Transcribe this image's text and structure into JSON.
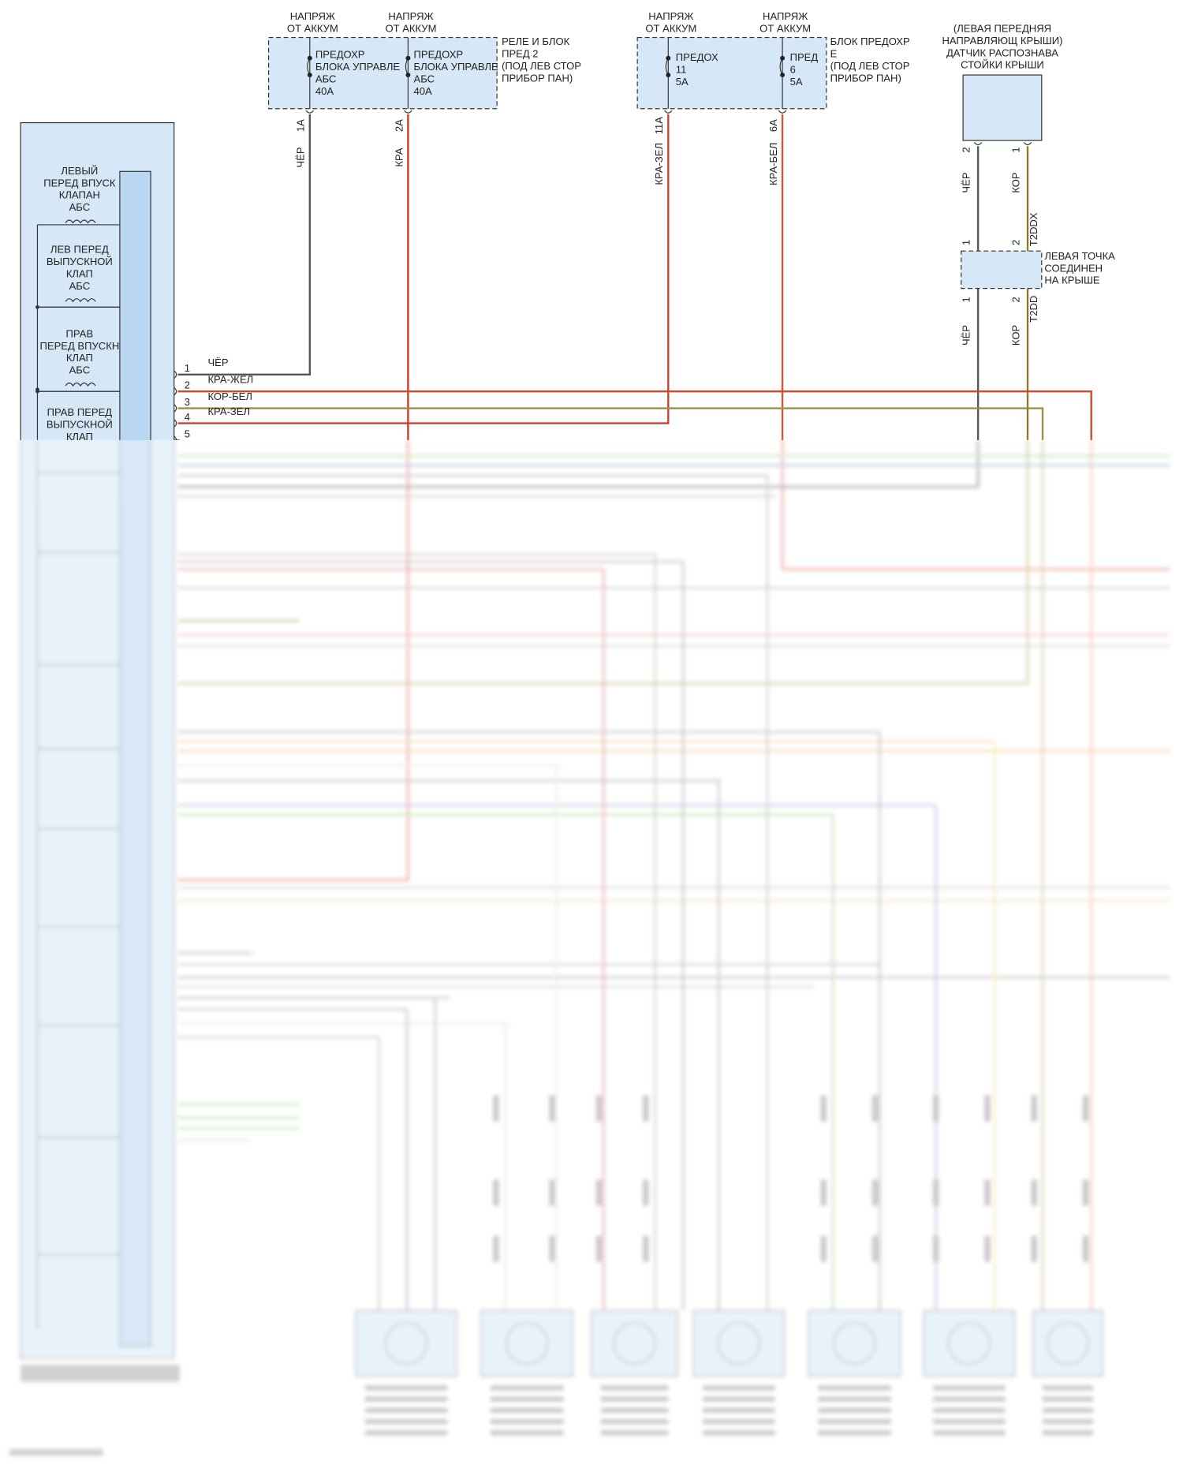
{
  "relay_box": {
    "label": [
      "РЕЛЕ И БЛОК",
      "ПРЕД 2",
      "(ПОД ЛЕВ СТОР",
      "ПРИБОР ПАН)"
    ],
    "fuses": [
      {
        "supply": [
          "НАПРЯЖ",
          "ОТ АККУМ"
        ],
        "name": [
          "ПРЕДОХР",
          "БЛОКА УПРАВЛЕ",
          "АБС",
          "40A"
        ],
        "pin": "1A",
        "wire": "ЧЁР"
      },
      {
        "supply": [
          "НАПРЯЖ",
          "ОТ АККУМ"
        ],
        "name": [
          "ПРЕДОХР",
          "БЛОКА УПРАВЛЕ",
          "АБС",
          "40A"
        ],
        "pin": "2A",
        "wire": "КРА"
      }
    ]
  },
  "fuse_box_e": {
    "label": [
      "БЛОК ПРЕДОХР",
      "Е",
      "(ПОД ЛЕВ СТОР",
      "ПРИБОР ПАН)"
    ],
    "fuses": [
      {
        "supply": [
          "НАПРЯЖ",
          "ОТ АККУМ"
        ],
        "name": [
          "ПРЕДОХ",
          "11",
          "5A"
        ],
        "pin": "11A",
        "wire": "КРА-ЗЕЛ"
      },
      {
        "supply": [
          "НАПРЯЖ",
          "ОТ АККУМ"
        ],
        "name": [
          "ПРЕД",
          "6",
          "5A"
        ],
        "pin": "6A",
        "wire": "КРА-БЕЛ"
      }
    ]
  },
  "roof_sensor": {
    "label": [
      "(ЛЕВАЯ ПЕРЕДНЯЯ",
      "НАПРАВЛЯЮЩ КРЫШИ)",
      "ДАТЧИК РАСПОЗНАВА",
      "СТОЙКИ КРЫШИ"
    ],
    "pins": [
      "2",
      "1"
    ],
    "wires": [
      "ЧЁР",
      "КОР"
    ],
    "connector": "T2DDX"
  },
  "roof_junction": {
    "label": [
      "ЛЕВАЯ ТОЧКА",
      "СОЕДИНЕН",
      "НА КРЫШЕ"
    ],
    "pins_top": [
      "1",
      "2"
    ],
    "pins_bottom": [
      "1",
      "2"
    ],
    "connector": "T2DD",
    "wires": [
      "ЧЁР",
      "КОР"
    ]
  },
  "abs_module": {
    "valves": [
      [
        "ЛЕВЫЙ",
        "ПЕРЕД ВПУСК",
        "КЛАПАН",
        "АБС"
      ],
      [
        "ЛЕВ ПЕРЕД",
        "ВЫПУСКНОЙ",
        "КЛАП",
        "АБС"
      ],
      [
        "ПРАВ",
        "ПЕРЕД ВПУСКН",
        "КЛАП",
        "АБС"
      ],
      [
        "ПРАВ ПЕРЕД",
        "ВЫПУСКНОЙ",
        "КЛАП"
      ]
    ],
    "pins": [
      {
        "pin": "1",
        "wire": "ЧЁР"
      },
      {
        "pin": "2",
        "wire": "КРА-ЖЕЛ"
      },
      {
        "pin": "3",
        "wire": "КОР-БЕЛ"
      },
      {
        "pin": "4",
        "wire": "КРА-ЗЕЛ"
      },
      {
        "pin": "5"
      }
    ]
  }
}
